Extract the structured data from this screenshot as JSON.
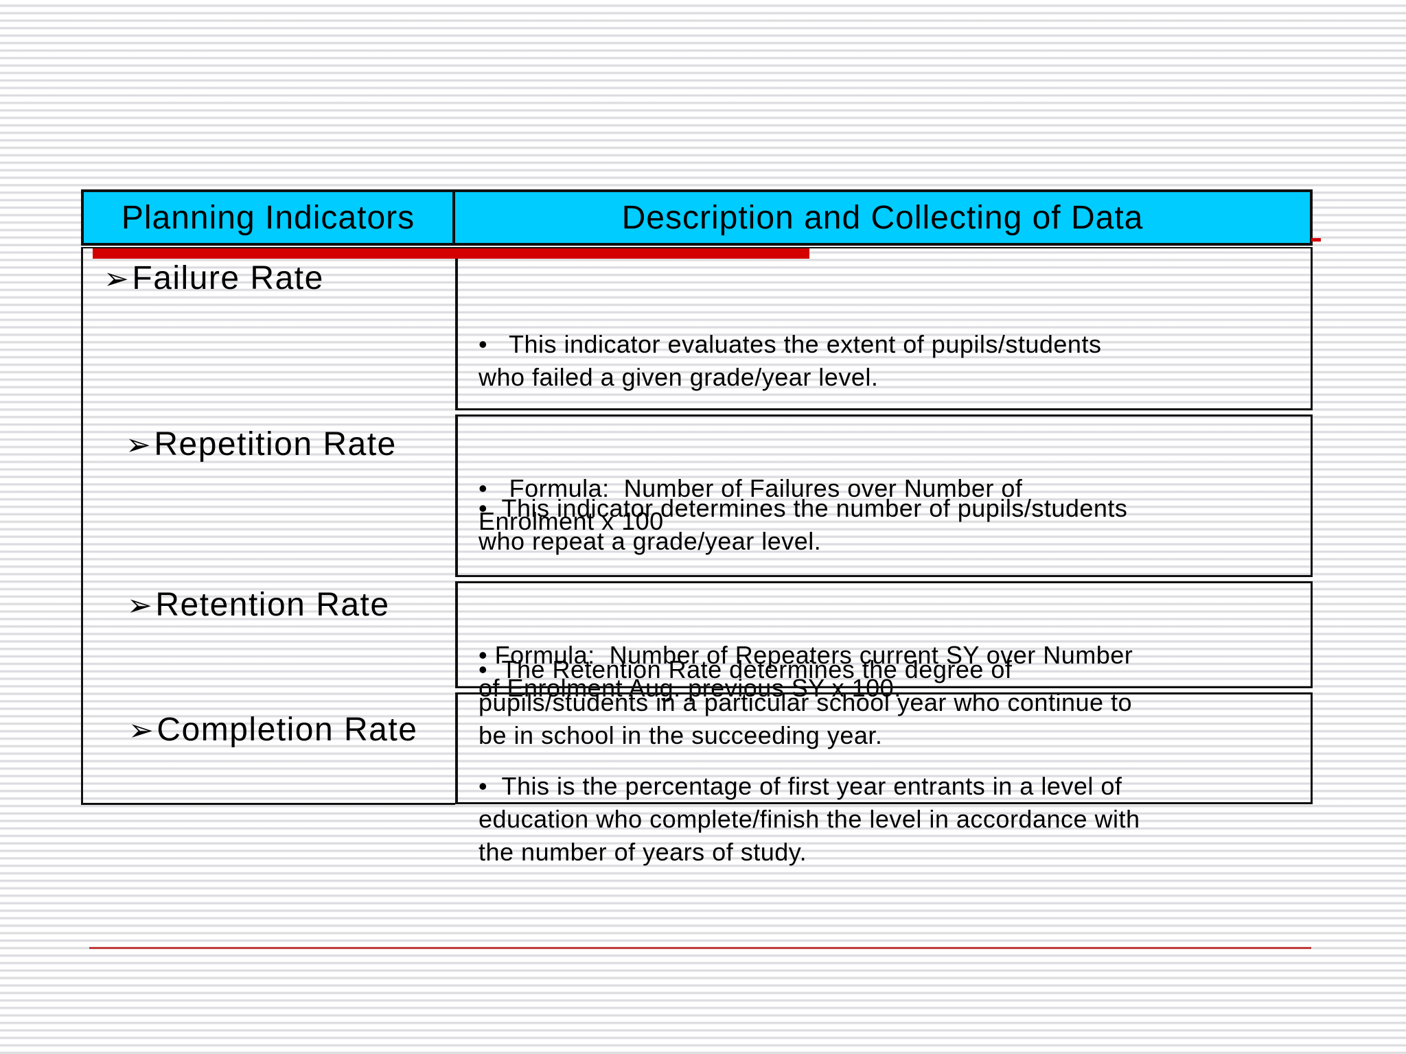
{
  "slide": {
    "stripe_color": "#d6d6da",
    "footer_line_color": "#c23b3b"
  },
  "table": {
    "arrow_bullet": "➢",
    "accent_color": "#d40000",
    "header": {
      "bg_color": "#00ccff",
      "indicators_label": "Planning Indicators",
      "description_label": "Description and Collecting of Data"
    },
    "rows": [
      {
        "indicator": "Failure Rate",
        "paragraphs": [
          "•   This indicator evaluates the extent of pupils/students\nwho failed a given grade/year level.",
          "•   Formula:  Number of Failures over Number of\nEnrolment x 100"
        ]
      },
      {
        "indicator": "Repetition Rate",
        "paragraphs": [
          "•  This indicator determines the number of pupils/students\nwho repeat a grade/year level.",
          "• Formula:  Number of Repeaters current SY over Number\nof Enrolment Aug. previous SY x 100."
        ]
      },
      {
        "indicator": "Retention Rate",
        "paragraphs": [
          "•  The Retention Rate determines the degree of\npupils/students in a particular school year who continue to\nbe in school in the succeeding year."
        ]
      },
      {
        "indicator": "Completion Rate",
        "paragraphs": [
          "•  This is the percentage of first year entrants in a level of\neducation who complete/finish the level in accordance with\nthe number of years of study."
        ]
      }
    ]
  }
}
